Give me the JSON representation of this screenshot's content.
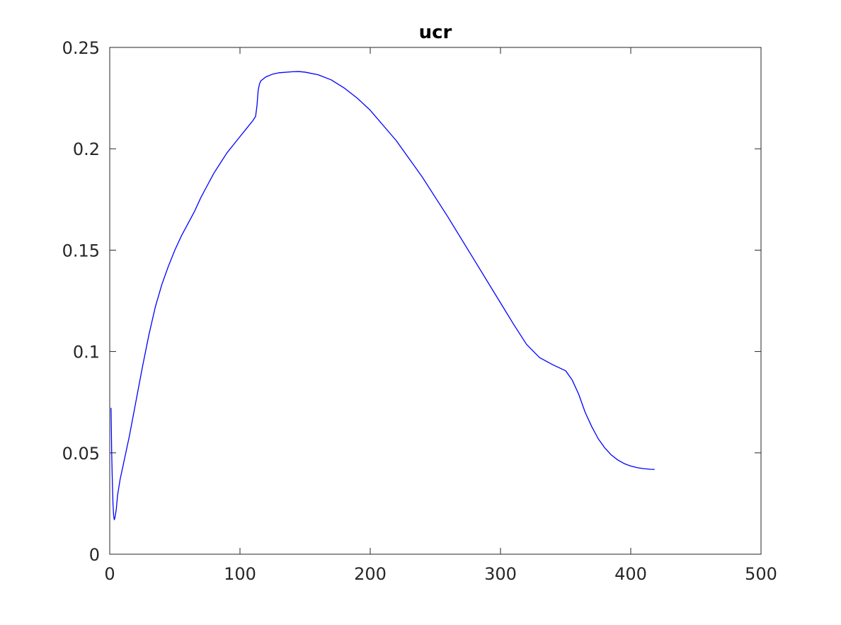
{
  "chart_data": {
    "type": "line",
    "title": "ucr",
    "xlabel": "",
    "ylabel": "",
    "xlim": [
      0,
      500
    ],
    "ylim": [
      0,
      0.25
    ],
    "x_ticks": [
      0,
      100,
      200,
      300,
      400,
      500
    ],
    "x_tick_labels": [
      "0",
      "100",
      "200",
      "300",
      "400",
      "500"
    ],
    "y_ticks": [
      0,
      0.05,
      0.1,
      0.15,
      0.2,
      0.25
    ],
    "y_tick_labels": [
      "0",
      "0.05",
      "0.1",
      "0.15",
      "0.2",
      "0.25"
    ],
    "grid": false,
    "box": true,
    "line_color": "#0000ff",
    "axis_color": "#262626",
    "series": [
      {
        "x": [
          1,
          1.5,
          2,
          2.5,
          3,
          3.5,
          4,
          5,
          6,
          8,
          10,
          15,
          20,
          25,
          30,
          35,
          40,
          45,
          50,
          55,
          60,
          65,
          70,
          75,
          80,
          85,
          90,
          95,
          100,
          105,
          110,
          112,
          113,
          114,
          115,
          116,
          120,
          125,
          130,
          140,
          145,
          150,
          160,
          170,
          180,
          190,
          200,
          220,
          240,
          260,
          280,
          300,
          310,
          320,
          330,
          340,
          350,
          355,
          360,
          365,
          370,
          375,
          380,
          385,
          390,
          395,
          400,
          405,
          410,
          415,
          418
        ],
        "y": [
          0.072,
          0.05,
          0.036,
          0.025,
          0.019,
          0.017,
          0.018,
          0.022,
          0.029,
          0.037,
          0.043,
          0.058,
          0.075,
          0.092,
          0.108,
          0.122,
          0.133,
          0.142,
          0.15,
          0.157,
          0.163,
          0.169,
          0.176,
          0.182,
          0.188,
          0.193,
          0.198,
          0.202,
          0.206,
          0.21,
          0.214,
          0.216,
          0.221,
          0.229,
          0.232,
          0.2335,
          0.2355,
          0.2368,
          0.2375,
          0.238,
          0.2381,
          0.2378,
          0.2365,
          0.234,
          0.23,
          0.225,
          0.219,
          0.204,
          0.186,
          0.166,
          0.145,
          0.124,
          0.1135,
          0.1035,
          0.097,
          0.0935,
          0.0905,
          0.086,
          0.079,
          0.07,
          0.063,
          0.057,
          0.0525,
          0.049,
          0.0465,
          0.0447,
          0.0435,
          0.0427,
          0.0422,
          0.0419,
          0.0418
        ]
      }
    ]
  }
}
